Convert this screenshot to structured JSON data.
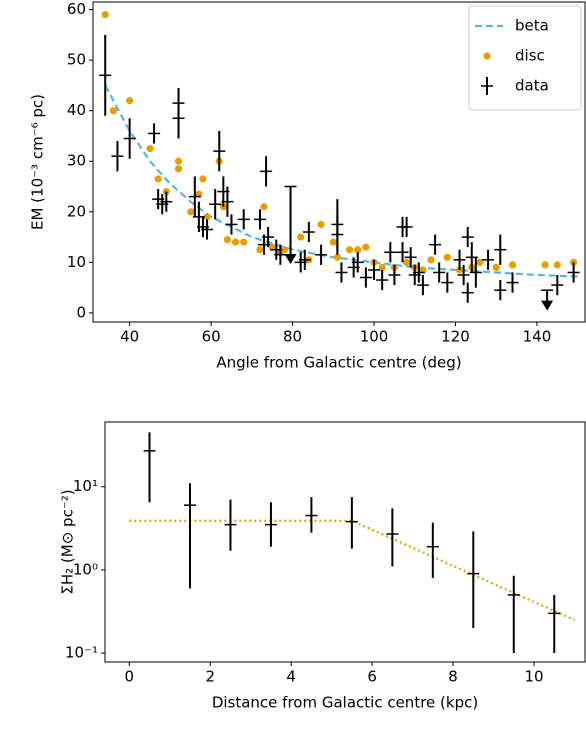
{
  "chart_data": [
    {
      "type": "scatter",
      "xlabel": "Angle from Galactic centre (deg)",
      "ylabel": "EM (10⁻³ cm⁻⁶ pc)",
      "xlim": [
        31,
        151.8
      ],
      "ylim": [
        -1.8,
        61.5
      ],
      "xticks": [
        40,
        60,
        80,
        100,
        120,
        140
      ],
      "yticks": [
        0,
        10,
        20,
        30,
        40,
        50,
        60
      ],
      "legend": "upper right",
      "series": [
        {
          "name": "beta",
          "kind": "line",
          "style": "dashed",
          "color": "#56b4e9",
          "x": [
            34,
            40,
            45,
            50,
            55,
            60,
            70,
            80,
            90,
            100,
            110,
            120,
            130,
            140,
            150
          ],
          "values": [
            45,
            36,
            30,
            25.5,
            22,
            19,
            15,
            12.5,
            11,
            10,
            9,
            8.5,
            8,
            7.5,
            7.2
          ]
        },
        {
          "name": "disc",
          "kind": "points",
          "color": "#e69f00",
          "x": [
            34,
            36,
            40,
            45,
            47,
            49,
            52,
            52,
            55,
            57,
            58,
            59,
            62,
            63,
            64,
            66,
            68,
            72,
            73,
            75,
            77,
            78,
            82,
            84,
            87,
            90,
            91,
            94,
            96,
            98,
            100,
            102,
            105,
            108,
            110,
            112,
            114,
            118,
            121,
            124,
            126,
            130,
            134,
            142,
            145,
            149
          ],
          "values": [
            59,
            40,
            42,
            32.5,
            26.5,
            24,
            28.5,
            30,
            20,
            23.5,
            26.5,
            19,
            30,
            21,
            14.5,
            14,
            14,
            12.5,
            21,
            13,
            12,
            12.5,
            15,
            10.5,
            17.5,
            14,
            11,
            12.5,
            12.5,
            13,
            10,
            9,
            9,
            10,
            9,
            8.5,
            10.5,
            11,
            8.5,
            9,
            10,
            9,
            9.5,
            9.5,
            9.5,
            10
          ]
        },
        {
          "name": "data",
          "kind": "errorbar",
          "color": "#000000",
          "x": [
            34,
            37,
            40,
            46,
            47,
            48,
            49,
            52,
            52,
            56,
            57,
            58,
            59,
            61,
            62,
            63,
            64,
            65,
            68,
            72,
            73,
            73.5,
            74,
            76,
            77,
            82,
            83,
            84,
            87,
            91,
            91,
            92,
            95,
            96,
            98,
            100,
            102,
            104,
            105,
            107,
            107,
            108,
            109,
            110,
            111,
            112,
            115,
            116,
            118,
            121,
            122,
            123,
            123,
            124,
            125,
            128,
            131,
            131,
            134,
            145,
            149
          ],
          "values": [
            47,
            31,
            34.5,
            35.5,
            22.5,
            21.5,
            22,
            38.5,
            41.5,
            23,
            19,
            17,
            16.5,
            21.5,
            32,
            24,
            22,
            17.5,
            18.5,
            18.5,
            13.5,
            28,
            15,
            12.5,
            11.5,
            10,
            10.5,
            16,
            11.5,
            15.5,
            17.5,
            8,
            9,
            10,
            7,
            8.5,
            6.5,
            12,
            7.5,
            12,
            17,
            17,
            11,
            7.5,
            8,
            5.5,
            13.5,
            8,
            6,
            10.5,
            7.5,
            15,
            4,
            11,
            8,
            10.5,
            12.5,
            4.5,
            6,
            5.5,
            8
          ],
          "errors": [
            8,
            3,
            4,
            2,
            2,
            2,
            2,
            4,
            3,
            4,
            3,
            2,
            2,
            3,
            4,
            3,
            3,
            2,
            2,
            2,
            2,
            3,
            2,
            2,
            2,
            2,
            2,
            2,
            2,
            4,
            5,
            2,
            2,
            2,
            2,
            2,
            2,
            2,
            2,
            2,
            2,
            2,
            2,
            2,
            2,
            2,
            2,
            2,
            2,
            2,
            2,
            2,
            2,
            3,
            3,
            2,
            3,
            2,
            2,
            2,
            2
          ],
          "upper_limit_x": [
            79.5,
            142.5
          ],
          "upper_limit_values": [
            25,
            4.5
          ]
        }
      ]
    },
    {
      "type": "scatter",
      "xlabel": "Distance from Galactic centre (kpc)",
      "ylabel": "ΣH₂ (M⊙ pc⁻²)",
      "yscale": "log",
      "xlim": [
        -0.6,
        11.26
      ],
      "ylim": [
        0.078,
        60
      ],
      "xticks": [
        0,
        2,
        4,
        6,
        8,
        10
      ],
      "yticks": [
        {
          "value": 0.1,
          "label": "10⁻¹"
        },
        {
          "value": 1,
          "label": "10⁰"
        },
        {
          "value": 10,
          "label": "10¹"
        }
      ],
      "series": [
        {
          "kind": "line",
          "style": "dotted",
          "color": "#e69f00",
          "x": [
            0,
            5.5,
            11
          ],
          "values": [
            3.9,
            3.9,
            0.25
          ]
        },
        {
          "kind": "errorbar",
          "color": "#000000",
          "x": [
            0.5,
            1.5,
            2.5,
            3.5,
            4.5,
            5.5,
            6.5,
            7.5,
            8.5,
            9.5,
            10.5
          ],
          "values": [
            27,
            6,
            3.5,
            3.5,
            4.5,
            3.8,
            2.7,
            1.9,
            0.9,
            0.5,
            0.3
          ],
          "lower": [
            6.5,
            0.6,
            1.7,
            1.9,
            2.8,
            1.8,
            1.1,
            0.8,
            0.2,
            0.1,
            0.1
          ],
          "upper": [
            45,
            11,
            7,
            6.5,
            7.5,
            7.5,
            5.5,
            3.7,
            2.9,
            0.85,
            0.5
          ]
        }
      ]
    }
  ]
}
